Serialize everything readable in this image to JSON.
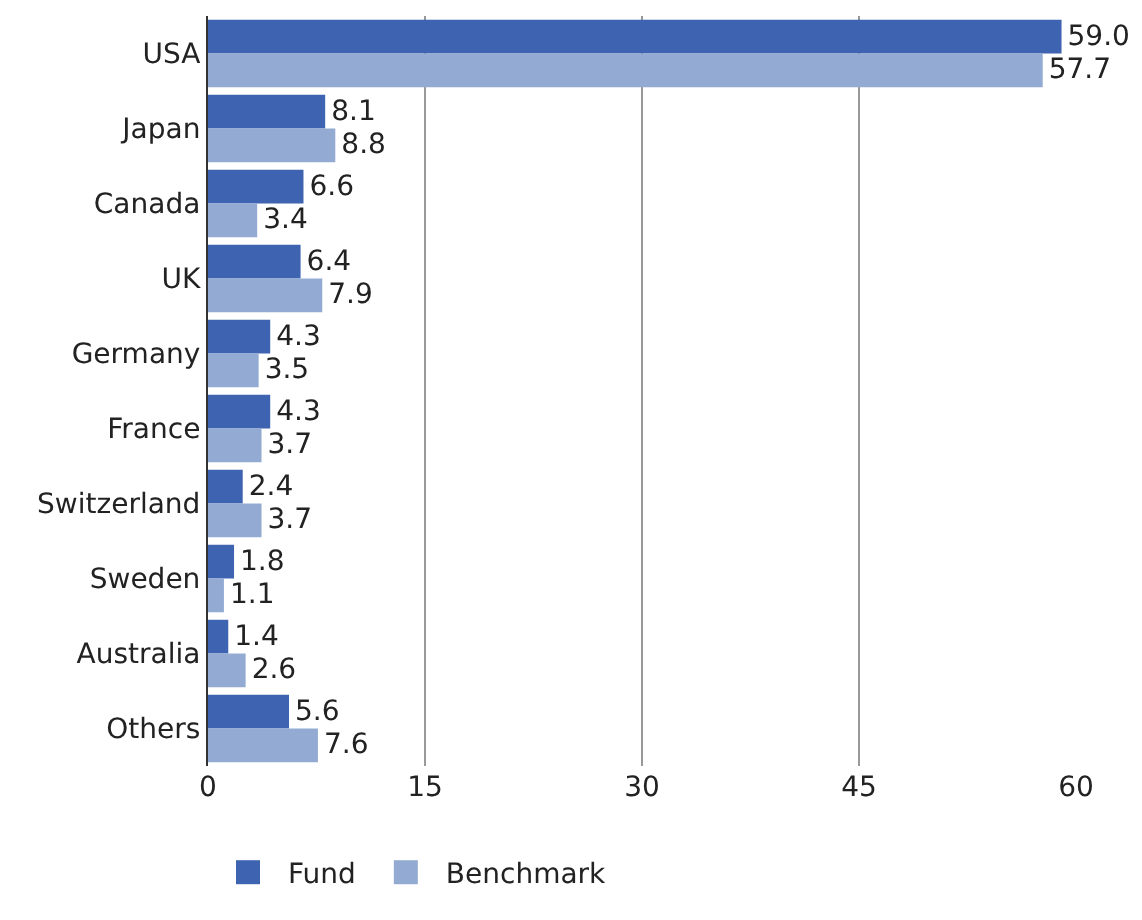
{
  "chart_data": {
    "type": "bar",
    "orientation": "horizontal",
    "categories": [
      "USA",
      "Japan",
      "Canada",
      "UK",
      "Germany",
      "France",
      "Switzerland",
      "Sweden",
      "Australia",
      "Others"
    ],
    "series": [
      {
        "name": "Fund",
        "color": "#3e63b1",
        "values": [
          59.0,
          8.1,
          6.6,
          6.4,
          4.3,
          4.3,
          2.4,
          1.8,
          1.4,
          5.6
        ],
        "value_labels": [
          "59.0",
          "8.1",
          "6.6",
          "6.4",
          "4.3",
          "4.3",
          "2.4",
          "1.8",
          "1.4",
          "5.6"
        ]
      },
      {
        "name": "Benchmark",
        "color": "#93abd3",
        "values": [
          57.7,
          8.8,
          3.4,
          7.9,
          3.5,
          3.7,
          3.7,
          1.1,
          2.6,
          7.6
        ],
        "value_labels": [
          "57.7",
          "8.8",
          "3.4",
          "7.9",
          "3.5",
          "3.7",
          "3.7",
          "1.1",
          "2.6",
          "7.6"
        ]
      }
    ],
    "xlim": [
      0,
      60
    ],
    "xticks": [
      0,
      15,
      30,
      45,
      60
    ],
    "grid": "x",
    "legend": "bottom left"
  }
}
